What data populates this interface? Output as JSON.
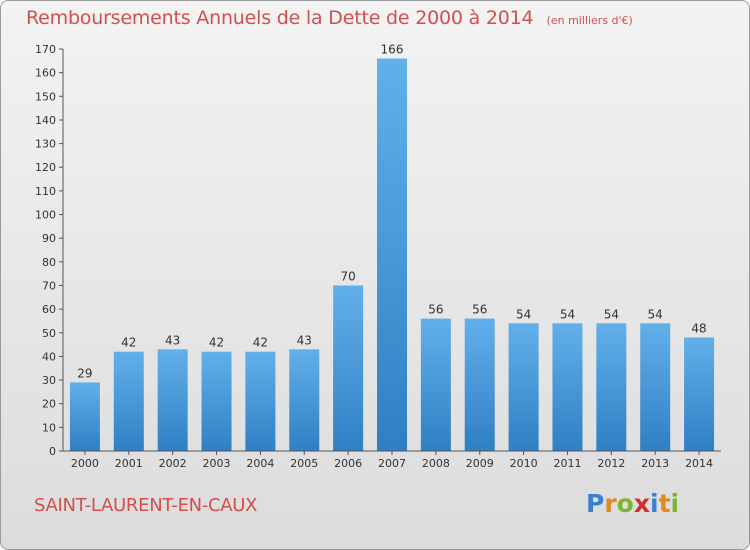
{
  "header": {
    "title": "Remboursements Annuels de la Dette de 2000 à 2014",
    "subtitle": "(en milliers d'€)"
  },
  "footer": {
    "commune": "SAINT-LAURENT-EN-CAUX",
    "logo_letters": [
      {
        "char": "P",
        "color": "#3a7fd0"
      },
      {
        "char": "r",
        "color": "#e08a1e"
      },
      {
        "char": "o",
        "color": "#7ab630"
      },
      {
        "char": "x",
        "color": "#d0302e"
      },
      {
        "char": "i",
        "color": "#3a7fd0"
      },
      {
        "char": "t",
        "color": "#e08a1e"
      },
      {
        "char": "i",
        "color": "#7ab630"
      }
    ]
  },
  "chart_data": {
    "type": "bar",
    "categories": [
      "2000",
      "2001",
      "2002",
      "2003",
      "2004",
      "2005",
      "2006",
      "2007",
      "2008",
      "2009",
      "2010",
      "2011",
      "2012",
      "2013",
      "2014"
    ],
    "values": [
      29,
      42,
      43,
      42,
      42,
      43,
      70,
      166,
      56,
      56,
      54,
      54,
      54,
      54,
      48
    ],
    "ylim": [
      0,
      170
    ],
    "yticks": [
      0,
      10,
      20,
      30,
      40,
      50,
      60,
      70,
      80,
      90,
      100,
      110,
      120,
      130,
      140,
      150,
      160,
      170
    ],
    "bar_color_top": "#62b0ea",
    "bar_color_bottom": "#2f7fc4",
    "grid": false,
    "legend": "none"
  }
}
